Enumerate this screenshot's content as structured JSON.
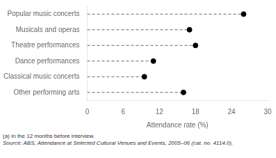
{
  "chart_data": {
    "type": "dot",
    "orientation": "horizontal",
    "categories": [
      "Popular music concerts",
      "Musicals and operas",
      "Theatre performances",
      "Dance performances",
      "Classical music concerts",
      "Other performing arts"
    ],
    "values": [
      26.0,
      17.0,
      18.0,
      11.0,
      9.5,
      16.0
    ],
    "xlim": [
      0,
      30
    ],
    "xticks": [
      0,
      6,
      12,
      18,
      24,
      30
    ],
    "xlabel": "Attendance rate (%)",
    "color": "#000000",
    "marker": "circle",
    "line_style": "dashed",
    "grid": false,
    "annotations": [
      "(a) In the 12 months before interview.",
      "Source: ABS, Attendance at Selected Cultural Venues and Events, 2005–06 (cat. no. 4114.0)."
    ]
  }
}
